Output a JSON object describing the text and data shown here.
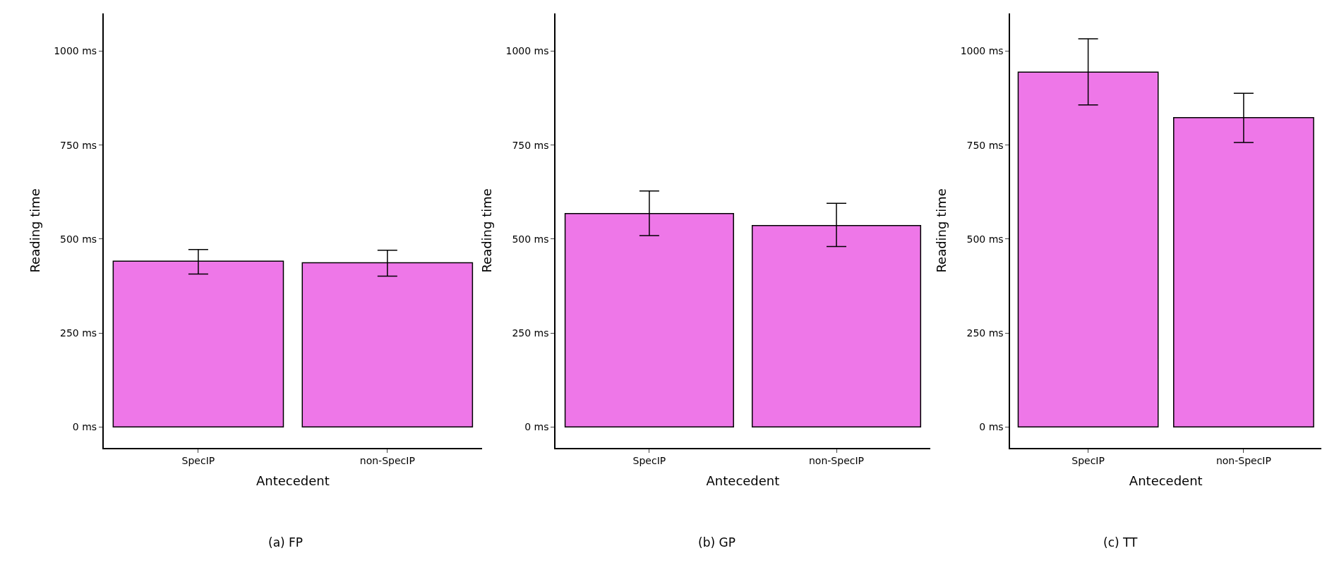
{
  "chart_data": [
    {
      "type": "bar",
      "xlabel": "Antecedent",
      "ylabel": "Reading time",
      "categories": [
        "SpecIP",
        "non-SpecIP"
      ],
      "values": [
        441,
        437
      ],
      "errors": [
        [
          407,
          472
        ],
        [
          401,
          470
        ]
      ],
      "color": "#ee77e8",
      "ylim": [
        -55,
        1100
      ],
      "yticks": [
        {
          "value": 0,
          "label": "0 ms"
        },
        {
          "value": 250,
          "label": "250 ms"
        },
        {
          "value": 500,
          "label": "500 ms"
        },
        {
          "value": 750,
          "label": "750 ms"
        },
        {
          "value": 1000,
          "label": "1000 ms"
        }
      ],
      "annotations": [
        "(a) FP"
      ]
    },
    {
      "type": "bar",
      "xlabel": "Antecedent",
      "ylabel": "Reading time",
      "categories": [
        "SpecIP",
        "non-SpecIP"
      ],
      "values": [
        568,
        536
      ],
      "errors": [
        [
          509,
          628
        ],
        [
          480,
          595
        ]
      ],
      "color": "#ee77e8",
      "ylim": [
        -55,
        1100
      ],
      "yticks": [
        {
          "value": 0,
          "label": "0 ms"
        },
        {
          "value": 250,
          "label": "250 ms"
        },
        {
          "value": 500,
          "label": "500 ms"
        },
        {
          "value": 750,
          "label": "750 ms"
        },
        {
          "value": 1000,
          "label": "1000 ms"
        }
      ],
      "annotations": [
        "(b) GP"
      ]
    },
    {
      "type": "bar",
      "xlabel": "Antecedent",
      "ylabel": "Reading time",
      "categories": [
        "SpecIP",
        "non-SpecIP"
      ],
      "values": [
        944,
        823
      ],
      "errors": [
        [
          857,
          1033
        ],
        [
          757,
          888
        ]
      ],
      "color": "#ee77e8",
      "ylim": [
        -55,
        1100
      ],
      "yticks": [
        {
          "value": 0,
          "label": "0 ms"
        },
        {
          "value": 250,
          "label": "250 ms"
        },
        {
          "value": 500,
          "label": "500 ms"
        },
        {
          "value": 750,
          "label": "750 ms"
        },
        {
          "value": 1000,
          "label": "1000 ms"
        }
      ],
      "annotations": [
        "(c) TT"
      ]
    }
  ]
}
